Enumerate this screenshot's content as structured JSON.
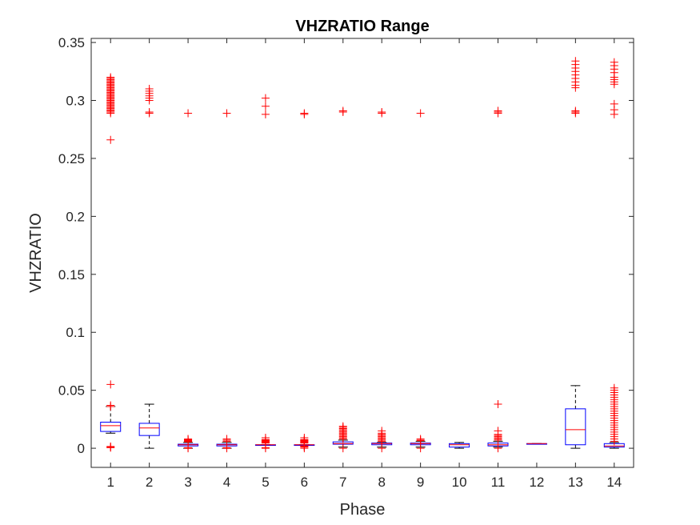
{
  "chart_data": {
    "type": "box",
    "title": "VHZRATIO Range",
    "xlabel": "Phase",
    "ylabel": "VHZRATIO",
    "ylim": [
      -0.0165,
      0.3535
    ],
    "yticks": [
      0,
      0.05,
      0.1,
      0.15,
      0.2,
      0.25,
      0.3,
      0.35
    ],
    "ytick_labels": [
      "0",
      "0.05",
      "0.1",
      "0.15",
      "0.2",
      "0.25",
      "0.3",
      "0.35"
    ],
    "xlim": [
      0.5,
      14.5
    ],
    "categories": [
      "1",
      "2",
      "3",
      "4",
      "5",
      "6",
      "7",
      "8",
      "9",
      "10",
      "11",
      "12",
      "13",
      "14"
    ],
    "grid": false,
    "colors": {
      "box": "#0000ff",
      "median": "#ff0000",
      "outlier": "#ff0000",
      "whisker": "#000000",
      "axis": "#262626"
    },
    "boxes": [
      {
        "x": 1,
        "q1": 0.0145,
        "median": 0.0195,
        "q3": 0.0225,
        "low": 0.013,
        "high": 0.036,
        "outliers": [
          0.0005,
          0.001,
          0.0015,
          0.036,
          0.037,
          0.055,
          0.266,
          0.289,
          0.29,
          0.291,
          0.292,
          0.293,
          0.294,
          0.295,
          0.296,
          0.297,
          0.298,
          0.299,
          0.3,
          0.301,
          0.302,
          0.303,
          0.304,
          0.305,
          0.306,
          0.307,
          0.308,
          0.309,
          0.31,
          0.311,
          0.312,
          0.313,
          0.314,
          0.315,
          0.316,
          0.317,
          0.318,
          0.319,
          0.32
        ]
      },
      {
        "x": 2,
        "q1": 0.011,
        "median": 0.0175,
        "q3": 0.0215,
        "low": 0.0,
        "high": 0.038,
        "outliers": [
          0.289,
          0.29,
          0.3,
          0.302,
          0.304,
          0.306,
          0.308,
          0.31
        ]
      },
      {
        "x": 3,
        "q1": 0.002,
        "median": 0.003,
        "q3": 0.0035,
        "low": 0.0,
        "high": 0.005,
        "outliers": [
          0.0,
          0.0005,
          0.0055,
          0.006,
          0.0065,
          0.007,
          0.0075,
          0.008,
          0.289
        ]
      },
      {
        "x": 4,
        "q1": 0.002,
        "median": 0.003,
        "q3": 0.0035,
        "low": 0.0,
        "high": 0.005,
        "outliers": [
          0.0,
          0.0005,
          0.006,
          0.007,
          0.008,
          0.289
        ]
      },
      {
        "x": 5,
        "q1": 0.003,
        "median": 0.003,
        "q3": 0.003,
        "low": 0.003,
        "high": 0.003,
        "outliers": [
          0.0,
          0.0005,
          0.0045,
          0.005,
          0.0055,
          0.006,
          0.0065,
          0.007,
          0.0075,
          0.009,
          0.288,
          0.295,
          0.302
        ]
      },
      {
        "x": 6,
        "q1": 0.003,
        "median": 0.003,
        "q3": 0.003,
        "low": 0.003,
        "high": 0.003,
        "outliers": [
          0.0,
          0.001,
          0.0015,
          0.002,
          0.0045,
          0.005,
          0.0055,
          0.006,
          0.0065,
          0.007,
          0.0075,
          0.009,
          0.288,
          0.289
        ]
      },
      {
        "x": 7,
        "q1": 0.0035,
        "median": 0.004,
        "q3": 0.0055,
        "low": 0.001,
        "high": 0.007,
        "outliers": [
          0.0,
          0.008,
          0.009,
          0.01,
          0.011,
          0.012,
          0.013,
          0.014,
          0.015,
          0.016,
          0.017,
          0.018,
          0.019,
          0.29,
          0.291
        ]
      },
      {
        "x": 8,
        "q1": 0.003,
        "median": 0.004,
        "q3": 0.0045,
        "low": 0.001,
        "high": 0.005,
        "outliers": [
          0.0,
          0.006,
          0.007,
          0.008,
          0.009,
          0.01,
          0.011,
          0.012,
          0.013,
          0.015,
          0.289,
          0.29
        ]
      },
      {
        "x": 9,
        "q1": 0.003,
        "median": 0.004,
        "q3": 0.0045,
        "low": 0.001,
        "high": 0.006,
        "outliers": [
          0.0,
          0.0065,
          0.007,
          0.008,
          0.289
        ]
      },
      {
        "x": 10,
        "q1": 0.001,
        "median": 0.003,
        "q3": 0.004,
        "low": 0.0,
        "high": 0.005,
        "outliers": []
      },
      {
        "x": 11,
        "q1": 0.002,
        "median": 0.003,
        "q3": 0.0045,
        "low": 0.001,
        "high": 0.006,
        "outliers": [
          0.0,
          0.007,
          0.008,
          0.009,
          0.01,
          0.011,
          0.012,
          0.015,
          0.038,
          0.289,
          0.29,
          0.291
        ]
      },
      {
        "x": 12,
        "q1": 0.004,
        "median": 0.004,
        "q3": 0.004,
        "low": 0.004,
        "high": 0.004,
        "outliers": []
      },
      {
        "x": 13,
        "q1": 0.003,
        "median": 0.016,
        "q3": 0.034,
        "low": 0.0,
        "high": 0.054,
        "outliers": [
          0.289,
          0.29,
          0.291,
          0.311,
          0.313,
          0.316,
          0.319,
          0.322,
          0.325,
          0.328,
          0.331,
          0.334
        ]
      },
      {
        "x": 14,
        "q1": 0.001,
        "median": 0.002,
        "q3": 0.004,
        "low": 0.0,
        "high": 0.005,
        "outliers": [
          0.006,
          0.008,
          0.01,
          0.012,
          0.014,
          0.016,
          0.018,
          0.02,
          0.022,
          0.024,
          0.026,
          0.028,
          0.03,
          0.032,
          0.034,
          0.036,
          0.038,
          0.04,
          0.042,
          0.044,
          0.046,
          0.048,
          0.05,
          0.052,
          0.288,
          0.292,
          0.297,
          0.314,
          0.316,
          0.318,
          0.32,
          0.324,
          0.327,
          0.33,
          0.333
        ]
      }
    ]
  }
}
